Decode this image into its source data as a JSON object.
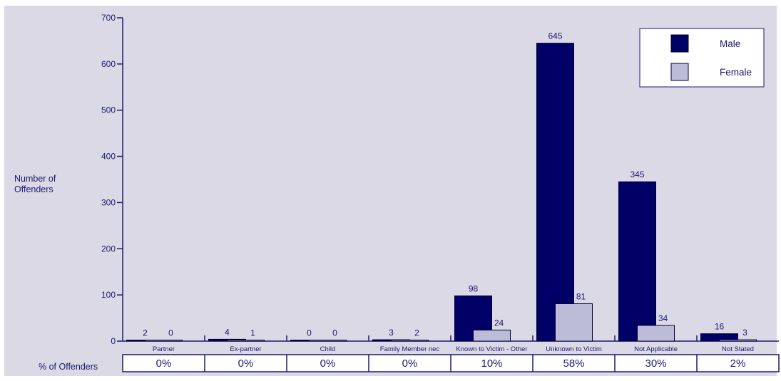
{
  "chart_data": {
    "type": "bar",
    "title": "",
    "ylabel": "Number of Offenders",
    "xlabel": "",
    "ylim": [
      0,
      700
    ],
    "yticks": [
      0,
      100,
      200,
      300,
      400,
      500,
      600,
      700
    ],
    "categories": [
      "Partner",
      "Ex-partner",
      "Child",
      "Family Member nec",
      "Known to Victim - Other",
      "Unknown to Victim",
      "Not Applicable",
      "Not Stated"
    ],
    "series": [
      {
        "name": "Male",
        "color": "#000066",
        "values": [
          2,
          4,
          0,
          3,
          98,
          645,
          345,
          16
        ]
      },
      {
        "name": "Female",
        "color": "#bcbcd9",
        "values": [
          0,
          1,
          0,
          2,
          24,
          81,
          34,
          3
        ]
      }
    ],
    "legend_position": "top-right",
    "percent_row": {
      "label": "% of Offenders",
      "values": [
        "0%",
        "0%",
        "0%",
        "0%",
        "10%",
        "58%",
        "30%",
        "2%"
      ]
    }
  }
}
